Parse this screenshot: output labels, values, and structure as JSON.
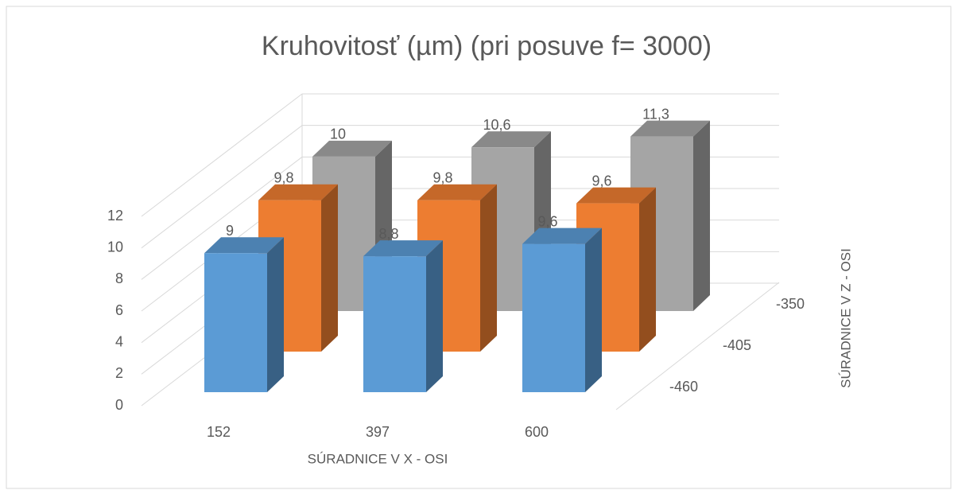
{
  "chart_data": {
    "type": "bar3d",
    "title": "Kruhovitosť (µm) (pri posuve f= 3000)",
    "x_label": "SÚRADNICE V X - OSI",
    "z_label": "SÚRADNICE V Z - OSI",
    "categories": [
      "152",
      "397",
      "600"
    ],
    "series": [
      {
        "name": "-460",
        "color": "#5b9bd5",
        "values": [
          9,
          8.8,
          9.6
        ],
        "value_labels": [
          "9",
          "8,8",
          "9,6"
        ]
      },
      {
        "name": "-405",
        "color": "#ed7d31",
        "values": [
          9.8,
          9.8,
          9.6
        ],
        "value_labels": [
          "9,8",
          "9,8",
          "9,6"
        ]
      },
      {
        "name": "-350",
        "color": "#a5a5a5",
        "values": [
          10,
          10.6,
          11.3
        ],
        "value_labels": [
          "10",
          "10,6",
          "11,3"
        ]
      }
    ],
    "ylim": [
      0,
      12
    ],
    "yticks": [
      0,
      2,
      4,
      6,
      8,
      10,
      12
    ],
    "grid": true
  }
}
